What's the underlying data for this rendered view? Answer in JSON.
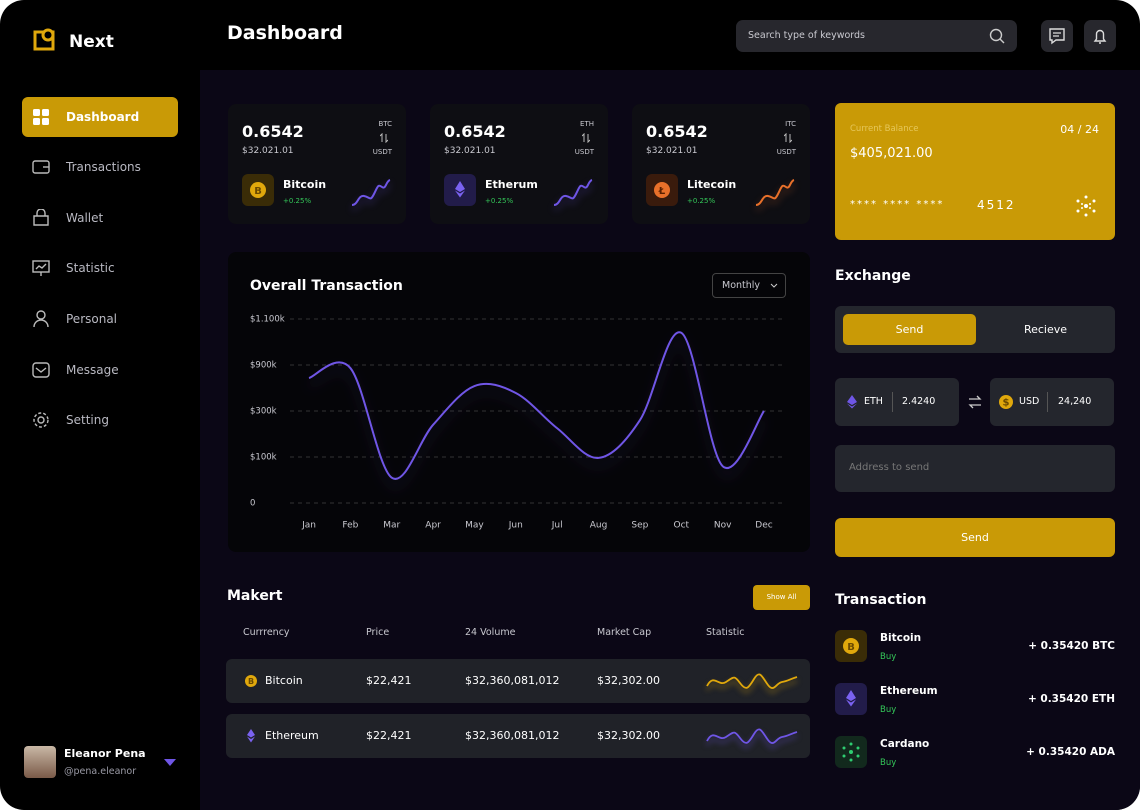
{
  "brand": "Next",
  "nav": [
    "Dashboard",
    "Transactions",
    "Wallet",
    "Statistic",
    "Personal",
    "Message",
    "Setting"
  ],
  "user": {
    "name": "Eleanor Pena",
    "handle": "@pena.eleanor"
  },
  "header": {
    "title": "Dashboard",
    "search_placeholder": "Search type of keywords"
  },
  "coins": [
    {
      "value": "0.6542",
      "usd": "$32.021.01",
      "pair_top": "BTC",
      "pair_bottom": "USDT",
      "name": "Bitcoin",
      "change": "+0.25%"
    },
    {
      "value": "0.6542",
      "usd": "$32.021.01",
      "pair_top": "ETH",
      "pair_bottom": "USDT",
      "name": "Etherum",
      "change": "+0.25%"
    },
    {
      "value": "0.6542",
      "usd": "$32.021.01",
      "pair_top": "ITC",
      "pair_bottom": "USDT",
      "name": "Litecoin",
      "change": "+0.25%"
    }
  ],
  "chart_data": {
    "type": "line",
    "title": "Overall Transaction",
    "period": "Monthly",
    "categories": [
      "Jan",
      "Feb",
      "Mar",
      "Apr",
      "May",
      "Jun",
      "Jul",
      "Aug",
      "Sep",
      "Oct",
      "Nov",
      "Dec"
    ],
    "series": [
      {
        "color": "#6f56e6",
        "values": [
          730,
          860,
          55,
          240,
          625,
          535,
          225,
          98,
          260,
          1040,
          80,
          300
        ]
      }
    ],
    "ylim": [
      0,
      1100
    ],
    "yticks": [
      {
        "value": 1100,
        "label": "$1.100k"
      },
      {
        "value": 900,
        "label": "$900k"
      },
      {
        "value": 300,
        "label": "$300k"
      },
      {
        "value": 100,
        "label": "$100k"
      },
      0
    ],
    "yscale": "piecewise",
    "grid": true
  },
  "market": {
    "title": "Makert",
    "button": "Show All",
    "columns": [
      "Currrency",
      "Price",
      "24 Volume",
      "Market Cap",
      "Statistic"
    ],
    "rows": [
      [
        "Bitcoin",
        "$22,421",
        "$32,360,081,012",
        "$32,302.00"
      ],
      [
        "Ethereum",
        "$22,421",
        "$32,360,081,012",
        "$32,302.00"
      ]
    ]
  },
  "card": {
    "label": "Current Balance",
    "expiry": "04 / 24",
    "balance": "$405,021.00",
    "number_mask": "**** **** ****",
    "number_last": "4512"
  },
  "exchange": {
    "title": "Exchange",
    "tabs": [
      "Send",
      "Recieve"
    ],
    "from": {
      "currency": "ETH",
      "amount": "2.4240"
    },
    "to": {
      "currency": "USD",
      "amount": "24,240"
    },
    "address_placeholder": "Address to send",
    "button": "Send"
  },
  "transactions": {
    "title": "Transaction",
    "items": [
      {
        "name": "Bitcoin",
        "status": "Buy",
        "amount": "+ 0.35420 BTC"
      },
      {
        "name": "Ethereum",
        "status": "Buy",
        "amount": "+ 0.35420 ETH"
      },
      {
        "name": "Cardano",
        "status": "Buy",
        "amount": "+ 0.35420 ADA"
      }
    ]
  }
}
